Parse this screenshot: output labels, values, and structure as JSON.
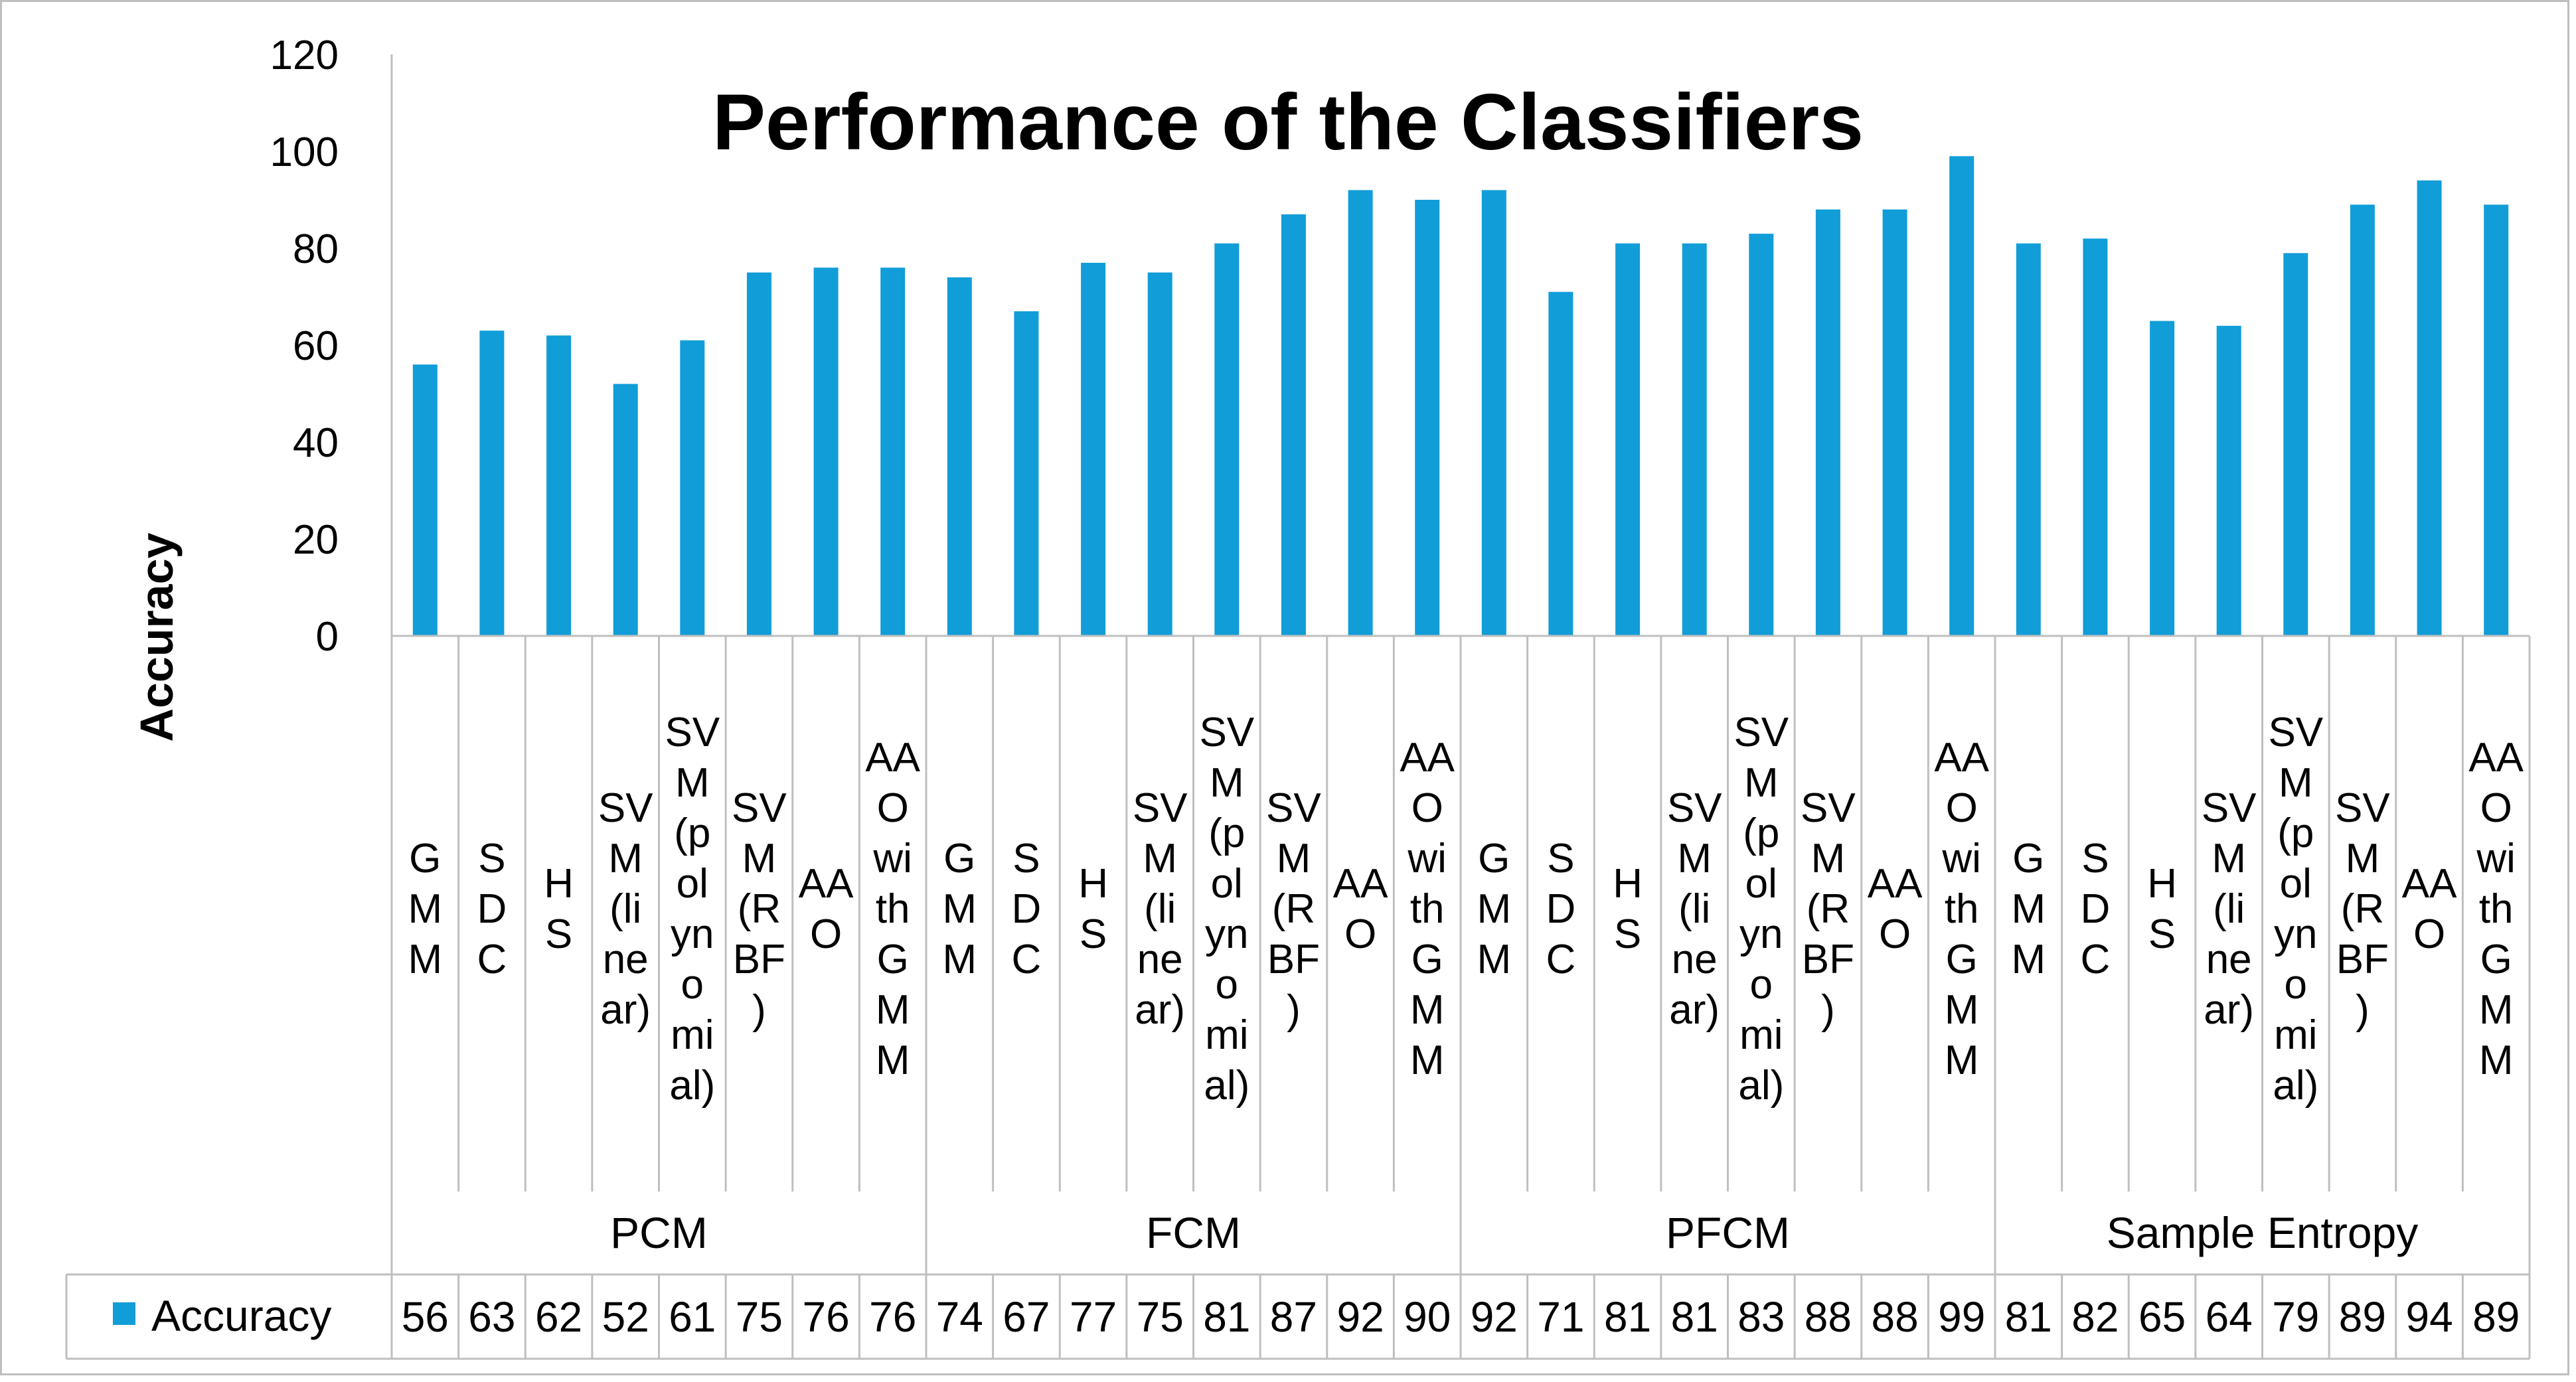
{
  "chart_data": {
    "type": "bar",
    "title": "Performance of the Classifiers",
    "ylabel": "Accuracy",
    "xlabel": "",
    "ylim": [
      0,
      120
    ],
    "yticks": [
      0,
      20,
      40,
      60,
      80,
      100,
      120
    ],
    "grid": false,
    "legend_position": "data-table-left",
    "groups": [
      {
        "label": "PCM",
        "categories": [
          "GMM",
          "SDC",
          "HS",
          "SVM(linear)",
          "SVM(polynomial)",
          "SVM(RBF)",
          "AAO",
          "AAO with GMM"
        ]
      },
      {
        "label": "FCM",
        "categories": [
          "GMM",
          "SDC",
          "HS",
          "SVM(linear)",
          "SVM(polynomial)",
          "SVM(RBF)",
          "AAO",
          "AAO with GMM"
        ]
      },
      {
        "label": "PFCM",
        "categories": [
          "GMM",
          "SDC",
          "HS",
          "SVM(linear)",
          "SVM(polynomial)",
          "SVM(RBF)",
          "AAO",
          "AAO with GMM"
        ]
      },
      {
        "label": "Sample Entropy",
        "categories": [
          "GMM",
          "SDC",
          "HS",
          "SVM(linear)",
          "SVM(polynomial)",
          "SVM(RBF)",
          "AAO",
          "AAO with GMM"
        ]
      }
    ],
    "series": [
      {
        "name": "Accuracy",
        "color": "#119dd8",
        "values": [
          56,
          63,
          62,
          52,
          61,
          75,
          76,
          76,
          74,
          67,
          77,
          75,
          81,
          87,
          92,
          90,
          92,
          71,
          81,
          81,
          83,
          88,
          88,
          99,
          81,
          82,
          65,
          64,
          79,
          89,
          94,
          89
        ]
      }
    ]
  }
}
